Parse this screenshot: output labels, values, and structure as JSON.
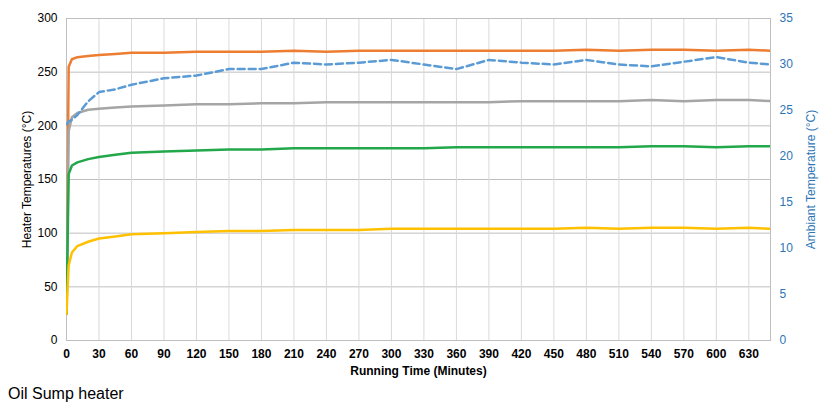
{
  "chart_data": {
    "type": "line",
    "xlabel": "Running Time (Minutes)",
    "ylabel": "Heater Temperatures (°C)",
    "y2label": "Ambiant Temperature (°C)",
    "annotations": [
      "Oil Sump heater"
    ],
    "x": [
      0,
      2,
      5,
      10,
      20,
      30,
      45,
      60,
      90,
      120,
      150,
      180,
      210,
      240,
      270,
      300,
      330,
      360,
      390,
      420,
      450,
      480,
      510,
      540,
      570,
      600,
      630,
      650
    ],
    "series": [
      {
        "color": "#ed7d31",
        "line_style": "solid",
        "values": [
          25,
          255,
          262,
          264,
          265,
          266,
          267,
          268,
          268,
          269,
          269,
          269,
          270,
          269,
          270,
          270,
          270,
          270,
          270,
          270,
          270,
          271,
          270,
          271,
          271,
          270,
          271,
          270
        ]
      },
      {
        "color": "#a5a5a5",
        "line_style": "solid",
        "values": [
          25,
          195,
          208,
          212,
          215,
          216,
          217,
          218,
          219,
          220,
          220,
          221,
          221,
          222,
          222,
          222,
          222,
          222,
          222,
          223,
          223,
          223,
          223,
          224,
          223,
          224,
          224,
          223
        ]
      },
      {
        "color": "#22a84a",
        "line_style": "solid",
        "values": [
          25,
          155,
          163,
          166,
          169,
          171,
          173,
          175,
          176,
          177,
          178,
          178,
          179,
          179,
          179,
          179,
          179,
          180,
          180,
          180,
          180,
          180,
          180,
          181,
          181,
          180,
          181,
          181
        ]
      },
      {
        "color": "#ffc000",
        "line_style": "solid",
        "values": [
          25,
          70,
          82,
          88,
          92,
          95,
          97,
          99,
          100,
          101,
          102,
          102,
          103,
          103,
          103,
          104,
          104,
          104,
          104,
          104,
          104,
          105,
          104,
          105,
          105,
          104,
          105,
          104
        ]
      },
      {
        "color": "#5b9bd5",
        "line_style": "dashed",
        "axis": "y2",
        "values": [
          23.5,
          23.8,
          24,
          24.5,
          26,
          27,
          27.3,
          27.8,
          28.5,
          28.8,
          29.5,
          29.5,
          30.2,
          30,
          30.2,
          30.5,
          30,
          29.5,
          30.5,
          30.2,
          30,
          30.5,
          30,
          29.8,
          30.3,
          30.8,
          30.2,
          30
        ]
      }
    ],
    "xlim": [
      0,
      650
    ],
    "xticks": [
      0,
      30,
      60,
      90,
      120,
      150,
      180,
      210,
      240,
      270,
      300,
      330,
      360,
      390,
      420,
      450,
      480,
      510,
      540,
      570,
      600,
      630
    ],
    "ylim": [
      0,
      300
    ],
    "yticks": [
      0,
      50,
      100,
      150,
      200,
      250,
      300
    ],
    "y2lim": [
      0,
      35
    ],
    "y2ticks": [
      0,
      5,
      10,
      15,
      20,
      25,
      30,
      35
    ],
    "grid": true
  }
}
